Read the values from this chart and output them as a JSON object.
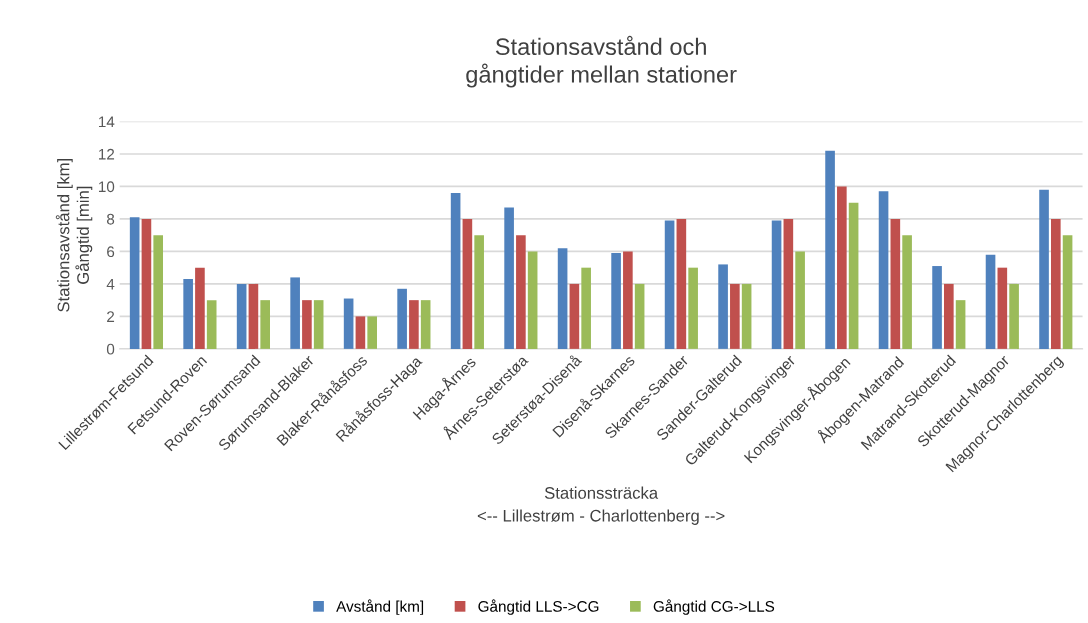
{
  "chart_data": {
    "type": "bar",
    "title": "Stationsavstånd och\ngångtider mellan stationer",
    "xlabel": "Stationssträcka\n<-- Lillestrøm - Charlottenberg -->",
    "ylabel": "Stationsavstånd [km]\nGångtid [min]",
    "categories": [
      "Lillestrøm-Fetsund",
      "Fetsund-Roven",
      "Roven-Sørumsand",
      "Sørumsand-Blaker",
      "Blaker-Rånåsfoss",
      "Rånåsfoss-Haga",
      "Haga-Årnes",
      "Årnes-Seterstøa",
      "Seterstøa-Disenå",
      "Disenå-Skarnes",
      "Skarnes-Sander",
      "Sander-Galterud",
      "Galterud-Kongsvinger",
      "Kongsvinger-Åbogen",
      "Åbogen-Matrand",
      "Matrand-Skotterud",
      "Skotterud-Magnor",
      "Magnor-Charlottenberg"
    ],
    "series": [
      {
        "name": "Avstånd [km]",
        "color": "#4f81bd",
        "values": [
          8.1,
          4.3,
          4.0,
          4.4,
          3.1,
          3.7,
          9.6,
          8.7,
          6.2,
          5.9,
          7.9,
          5.2,
          7.9,
          12.2,
          9.7,
          5.1,
          5.8,
          9.8
        ]
      },
      {
        "name": "Gångtid LLS->CG",
        "color": "#c0504d",
        "values": [
          8,
          5,
          4,
          3,
          2,
          3,
          8,
          7,
          4,
          6,
          8,
          4,
          8,
          10,
          8,
          4,
          5,
          8
        ]
      },
      {
        "name": "Gångtid CG->LLS",
        "color": "#9bbb59",
        "values": [
          7,
          3,
          3,
          3,
          2,
          3,
          7,
          6,
          5,
          4,
          5,
          4,
          6,
          9,
          7,
          3,
          4,
          7
        ]
      }
    ],
    "ylim": [
      0,
      14
    ],
    "yticks": [
      0,
      2,
      4,
      6,
      8,
      10,
      12,
      14
    ],
    "grid": "y",
    "legend": "bottom"
  }
}
